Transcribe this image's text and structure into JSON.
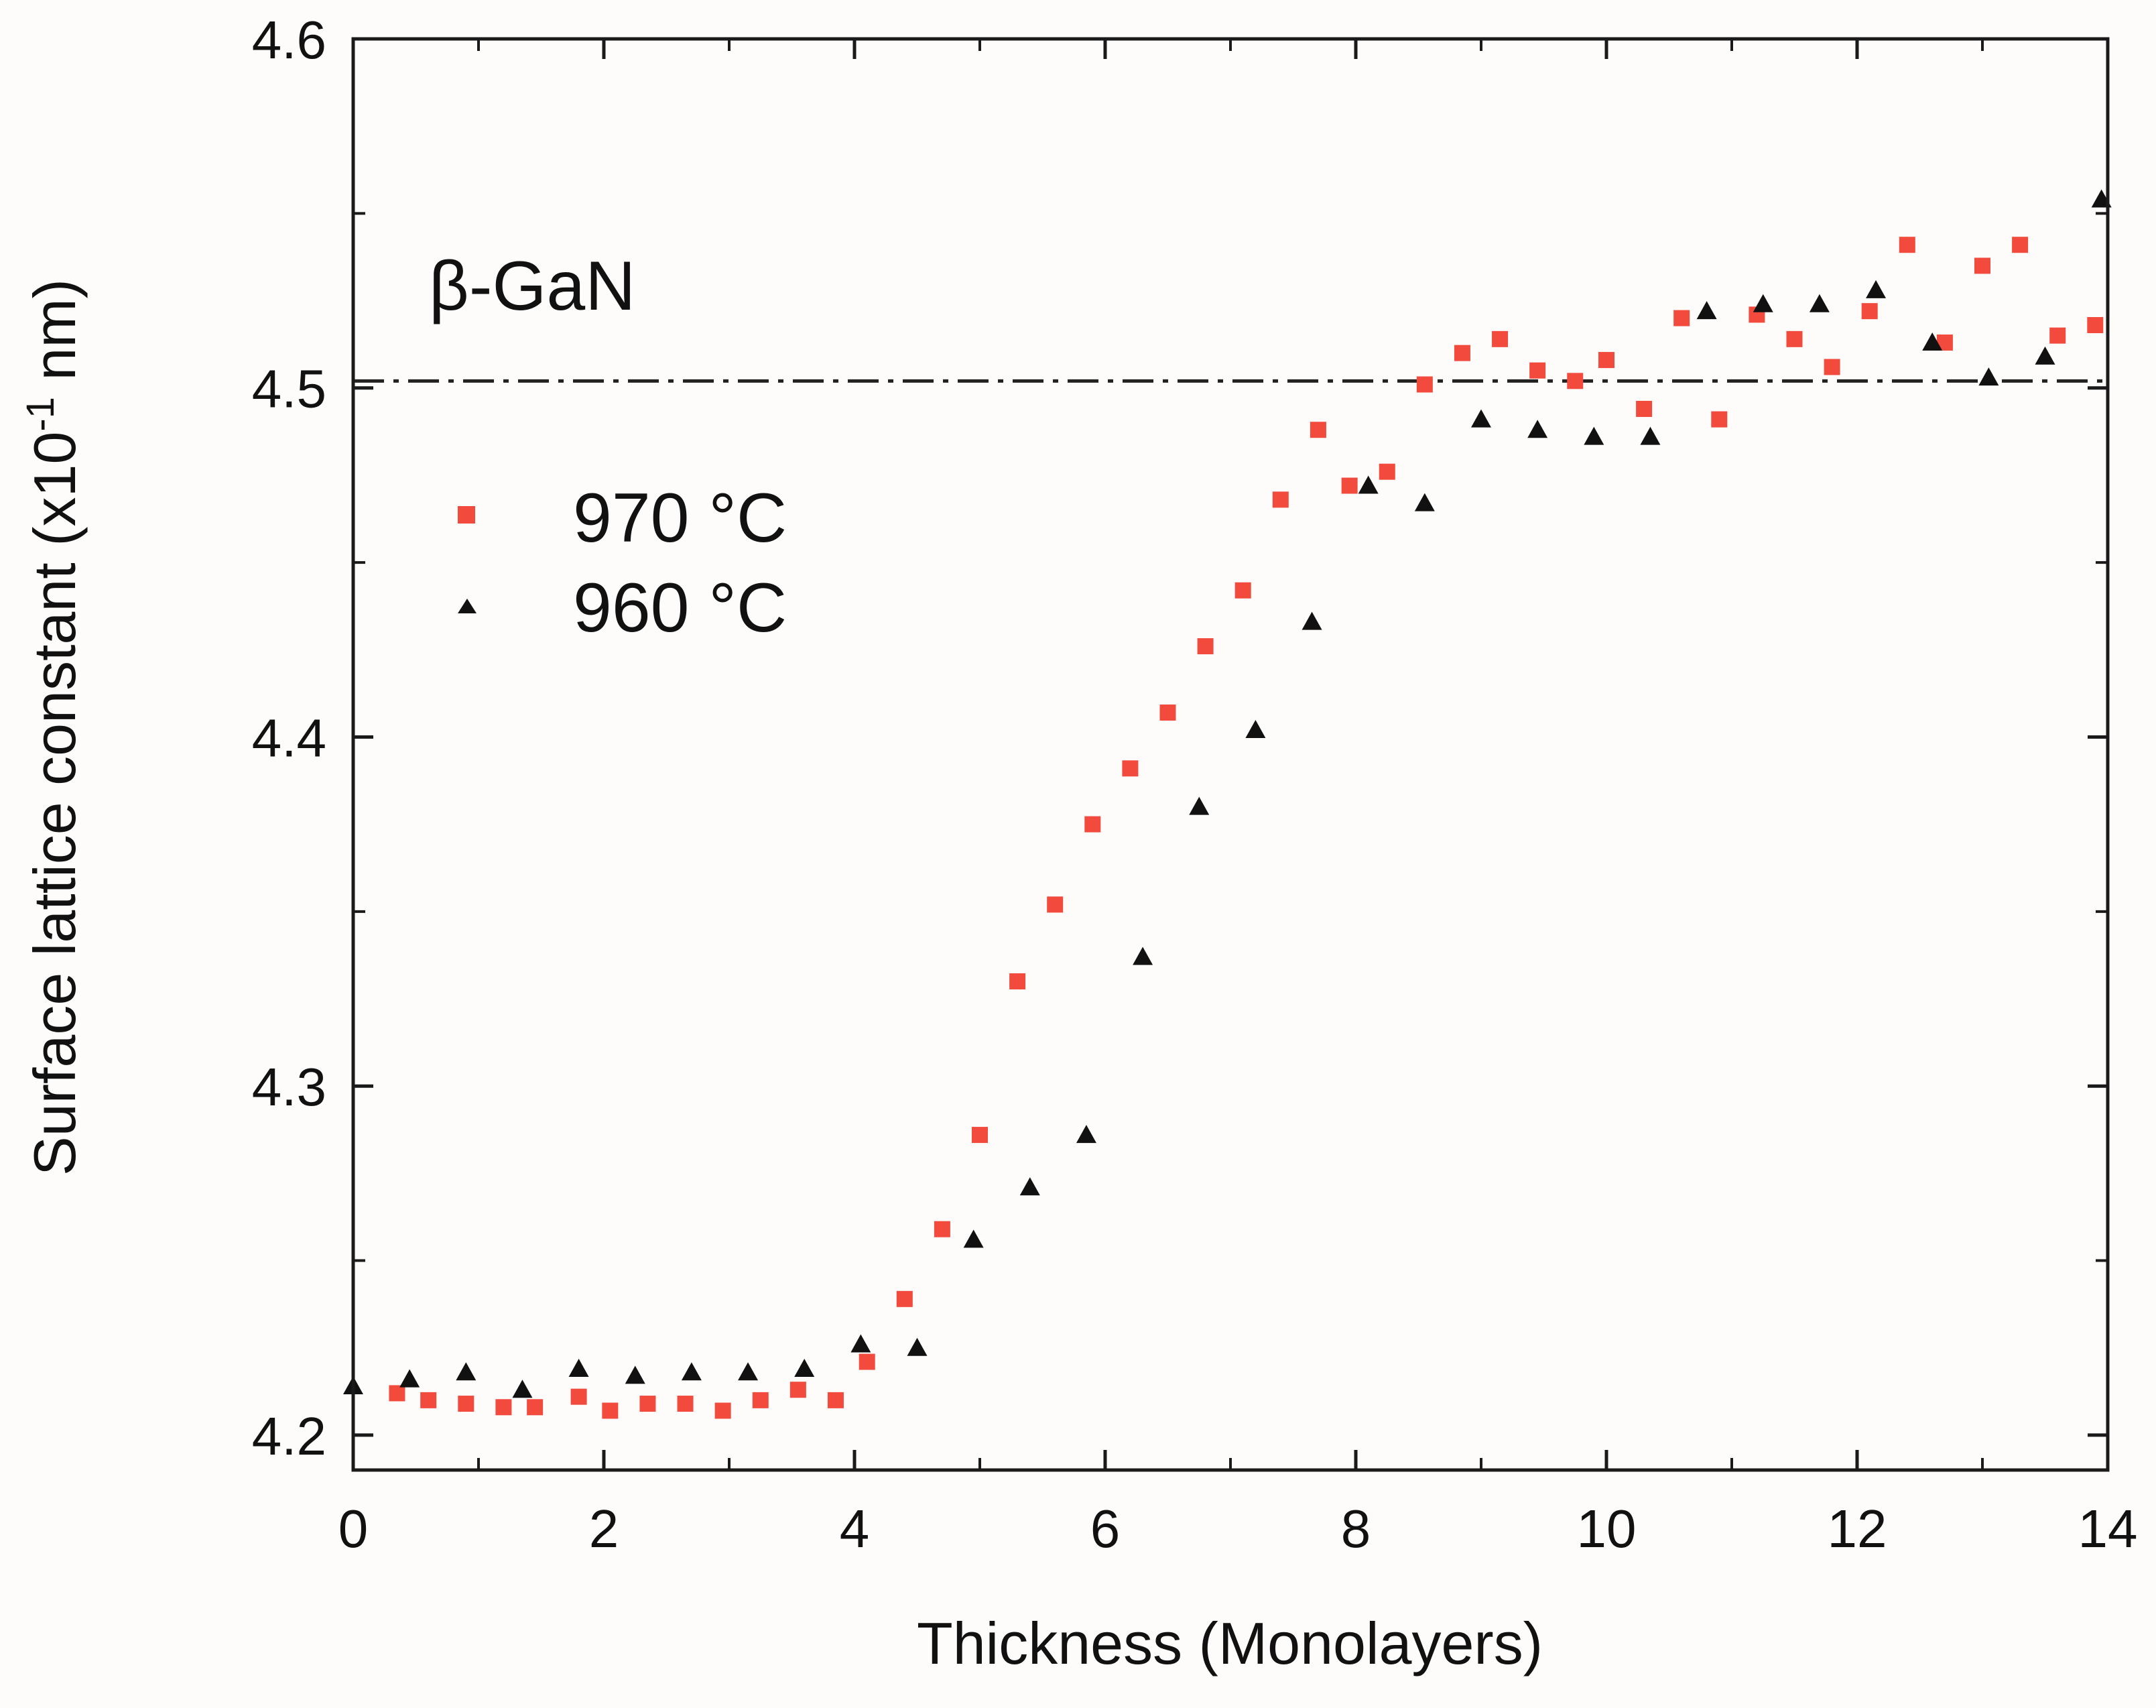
{
  "chart_data": {
    "type": "scatter",
    "title": "",
    "xlabel": "Thickness (Monolayers)",
    "ylabel_main": "Surface lattice constant (x10",
    "ylabel_exp": "-1",
    "ylabel_tail": " nm)",
    "xlim": [
      0,
      14
    ],
    "ylim": [
      4.19,
      4.6
    ],
    "xticks": [
      0,
      2,
      4,
      6,
      8,
      10,
      12,
      14
    ],
    "xtick_labels": [
      "0",
      "2",
      "4",
      "6",
      "8",
      "10",
      "12",
      "14"
    ],
    "yticks": [
      4.2,
      4.3,
      4.4,
      4.5,
      4.6
    ],
    "ytick_labels": [
      "4.2",
      "4.3",
      "4.4",
      "4.5",
      "4.6"
    ],
    "grid": false,
    "legend_position": "upper-left",
    "reference_line": {
      "y": 4.502,
      "style": "dash-dot",
      "label": "β-GaN"
    },
    "series": [
      {
        "name": "970 °C",
        "marker": "square",
        "color": "#f24a3c",
        "x": [
          0.35,
          0.6,
          0.9,
          1.2,
          1.45,
          1.8,
          2.05,
          2.35,
          2.65,
          2.95,
          3.25,
          3.55,
          3.85,
          4.1,
          4.4,
          4.7,
          5.0,
          5.3,
          5.6,
          5.9,
          6.2,
          6.5,
          6.8,
          7.1,
          7.4,
          7.7,
          7.95,
          8.25,
          8.55,
          8.85,
          9.15,
          9.45,
          9.75,
          10.0,
          10.3,
          10.6,
          10.9,
          11.2,
          11.5,
          11.8,
          12.1,
          12.4,
          12.7,
          13.0,
          13.3,
          13.6,
          13.9
        ],
        "y": [
          4.212,
          4.21,
          4.209,
          4.208,
          4.208,
          4.211,
          4.207,
          4.209,
          4.209,
          4.207,
          4.21,
          4.213,
          4.21,
          4.221,
          4.239,
          4.259,
          4.286,
          4.33,
          4.352,
          4.375,
          4.391,
          4.407,
          4.426,
          4.442,
          4.468,
          4.488,
          4.472,
          4.476,
          4.501,
          4.51,
          4.514,
          4.505,
          4.502,
          4.508,
          4.494,
          4.52,
          4.491,
          4.521,
          4.514,
          4.506,
          4.522,
          4.541,
          4.513,
          4.535,
          4.541,
          4.515,
          4.518
        ]
      },
      {
        "name": "960 °C",
        "marker": "triangle",
        "color": "#111111",
        "x": [
          0.0,
          0.45,
          0.9,
          1.35,
          1.8,
          2.25,
          2.7,
          3.15,
          3.6,
          4.05,
          4.5,
          4.95,
          5.4,
          5.85,
          6.3,
          6.75,
          7.2,
          7.65,
          8.1,
          8.55,
          9.0,
          9.45,
          9.9,
          10.35,
          10.8,
          11.25,
          11.7,
          12.15,
          12.6,
          13.05,
          13.5,
          13.95
        ],
        "y": [
          4.214,
          4.216,
          4.218,
          4.213,
          4.219,
          4.217,
          4.218,
          4.218,
          4.219,
          4.226,
          4.225,
          4.256,
          4.271,
          4.286,
          4.337,
          4.38,
          4.402,
          4.433,
          4.472,
          4.467,
          4.491,
          4.488,
          4.486,
          4.486,
          4.522,
          4.524,
          4.524,
          4.528,
          4.513,
          4.503,
          4.509,
          4.554
        ]
      }
    ]
  }
}
